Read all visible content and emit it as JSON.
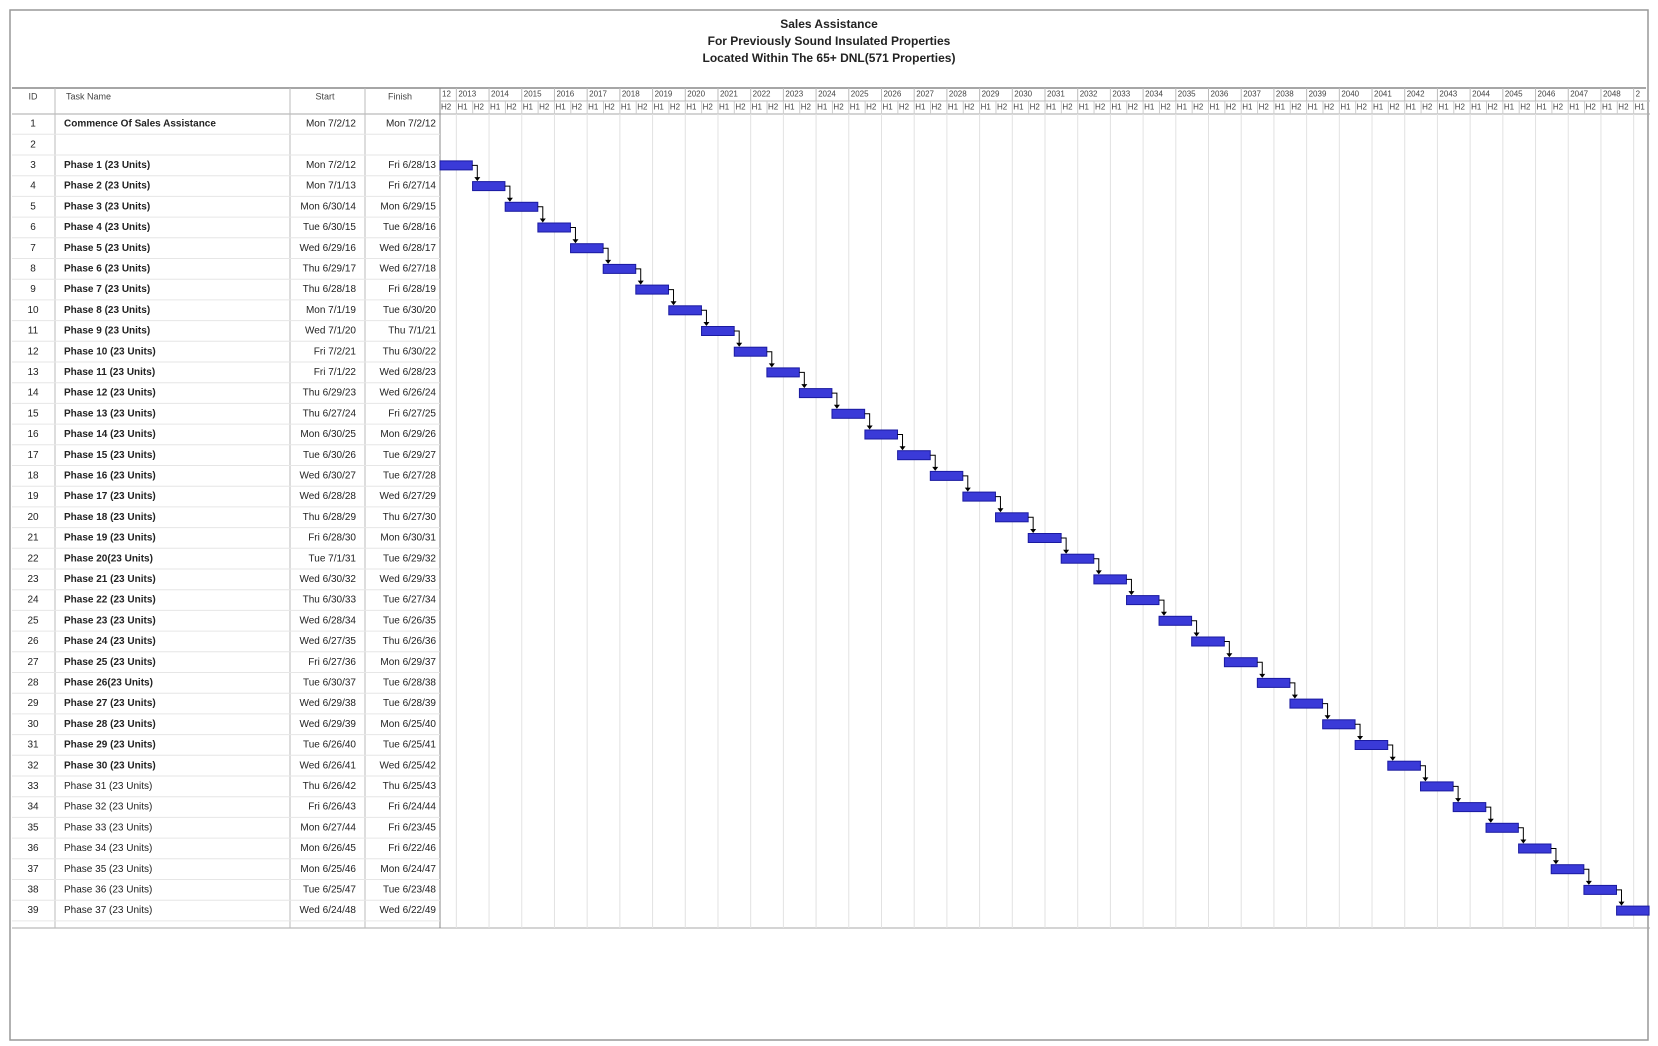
{
  "chart_data": {
    "type": "gantt",
    "title": [
      "Sales Assistance",
      "For Previously Sound Insulated Properties",
      "Located Within The 65+ DNL(571 Properties)"
    ],
    "columns": [
      "ID",
      "Task Name",
      "Start",
      "Finish"
    ],
    "bar_color": "#3a3ad8",
    "grid": true,
    "xlim": [
      2012.5,
      2049.5
    ],
    "xticks": [
      {
        "value": 2012,
        "label": "12"
      },
      2013,
      2014,
      2015,
      2016,
      2017,
      2018,
      2019,
      2020,
      2021,
      2022,
      2023,
      2024,
      2025,
      2026,
      2027,
      2028,
      2029,
      2030,
      2031,
      2032,
      2033,
      2034,
      2035,
      2036,
      2037,
      2038,
      2039,
      2040,
      2041,
      2042,
      2043,
      2044,
      2045,
      2046,
      2047,
      2048,
      {
        "value": 2049,
        "label": "2"
      }
    ],
    "halves": [
      {
        "value": 2012.5,
        "label": "H2"
      },
      {
        "value": 2013,
        "label": "H1"
      },
      {
        "value": 2013.5,
        "label": "H2"
      },
      {
        "value": 2014,
        "label": "H1"
      },
      {
        "value": 2014.5,
        "label": "H2"
      },
      {
        "value": 2015,
        "label": "H1"
      },
      {
        "value": 2015.5,
        "label": "H2"
      },
      {
        "value": 2016,
        "label": "H1"
      },
      {
        "value": 2016.5,
        "label": "H2"
      },
      {
        "value": 2017,
        "label": "H1"
      },
      {
        "value": 2017.5,
        "label": "H2"
      },
      {
        "value": 2018,
        "label": "H1"
      },
      {
        "value": 2018.5,
        "label": "H2"
      },
      {
        "value": 2019,
        "label": "H1"
      },
      {
        "value": 2019.5,
        "label": "H2"
      },
      {
        "value": 2020,
        "label": "H1"
      },
      {
        "value": 2020.5,
        "label": "H2"
      },
      {
        "value": 2021,
        "label": "H1"
      },
      {
        "value": 2021.5,
        "label": "H2"
      },
      {
        "value": 2022,
        "label": "H1"
      },
      {
        "value": 2022.5,
        "label": "H2"
      },
      {
        "value": 2023,
        "label": "H1"
      },
      {
        "value": 2023.5,
        "label": "H2"
      },
      {
        "value": 2024,
        "label": "H1"
      },
      {
        "value": 2024.5,
        "label": "H2"
      },
      {
        "value": 2025,
        "label": "H1"
      },
      {
        "value": 2025.5,
        "label": "H2"
      },
      {
        "value": 2026,
        "label": "H1"
      },
      {
        "value": 2026.5,
        "label": "H2"
      },
      {
        "value": 2027,
        "label": "H1"
      },
      {
        "value": 2027.5,
        "label": "H2"
      },
      {
        "value": 2028,
        "label": "H1"
      },
      {
        "value": 2028.5,
        "label": "H2"
      },
      {
        "value": 2029,
        "label": "H1"
      },
      {
        "value": 2029.5,
        "label": "H2"
      },
      {
        "value": 2030,
        "label": "H1"
      },
      {
        "value": 2030.5,
        "label": "H2"
      },
      {
        "value": 2031,
        "label": "H1"
      },
      {
        "value": 2031.5,
        "label": "H2"
      },
      {
        "value": 2032,
        "label": "H1"
      },
      {
        "value": 2032.5,
        "label": "H2"
      },
      {
        "value": 2033,
        "label": "H1"
      },
      {
        "value": 2033.5,
        "label": "H2"
      },
      {
        "value": 2034,
        "label": "H1"
      },
      {
        "value": 2034.5,
        "label": "H2"
      },
      {
        "value": 2035,
        "label": "H1"
      },
      {
        "value": 2035.5,
        "label": "H2"
      },
      {
        "value": 2036,
        "label": "H1"
      },
      {
        "value": 2036.5,
        "label": "H2"
      },
      {
        "value": 2037,
        "label": "H1"
      },
      {
        "value": 2037.5,
        "label": "H2"
      },
      {
        "value": 2038,
        "label": "H1"
      },
      {
        "value": 2038.5,
        "label": "H2"
      },
      {
        "value": 2039,
        "label": "H1"
      },
      {
        "value": 2039.5,
        "label": "H2"
      },
      {
        "value": 2040,
        "label": "H1"
      },
      {
        "value": 2040.5,
        "label": "H2"
      },
      {
        "value": 2041,
        "label": "H1"
      },
      {
        "value": 2041.5,
        "label": "H2"
      },
      {
        "value": 2042,
        "label": "H1"
      },
      {
        "value": 2042.5,
        "label": "H2"
      },
      {
        "value": 2043,
        "label": "H1"
      },
      {
        "value": 2043.5,
        "label": "H2"
      },
      {
        "value": 2044,
        "label": "H1"
      },
      {
        "value": 2044.5,
        "label": "H2"
      },
      {
        "value": 2045,
        "label": "H1"
      },
      {
        "value": 2045.5,
        "label": "H2"
      },
      {
        "value": 2046,
        "label": "H1"
      },
      {
        "value": 2046.5,
        "label": "H2"
      },
      {
        "value": 2047,
        "label": "H1"
      },
      {
        "value": 2047.5,
        "label": "H2"
      },
      {
        "value": 2048,
        "label": "H1"
      },
      {
        "value": 2048.5,
        "label": "H2"
      },
      {
        "value": 2049,
        "label": "H1"
      }
    ],
    "tasks": [
      {
        "id": 1,
        "name": "Commence Of Sales Assistance",
        "start": "Mon 7/2/12",
        "finish": "Mon 7/2/12",
        "bold": true
      },
      {
        "id": 2
      },
      {
        "id": 3,
        "name": "Phase 1 (23 Units)",
        "start": "Mon 7/2/12",
        "finish": "Fri 6/28/13",
        "bold": true
      },
      {
        "id": 4,
        "name": "Phase 2 (23 Units)",
        "start": "Mon 7/1/13",
        "finish": "Fri 6/27/14",
        "bold": true
      },
      {
        "id": 5,
        "name": "Phase 3 (23 Units)",
        "start": "Mon 6/30/14",
        "finish": "Mon 6/29/15",
        "bold": true
      },
      {
        "id": 6,
        "name": "Phase 4 (23 Units)",
        "start": "Tue 6/30/15",
        "finish": "Tue 6/28/16",
        "bold": true
      },
      {
        "id": 7,
        "name": "Phase 5 (23 Units)",
        "start": "Wed 6/29/16",
        "finish": "Wed 6/28/17",
        "bold": true
      },
      {
        "id": 8,
        "name": "Phase 6 (23 Units)",
        "start": "Thu 6/29/17",
        "finish": "Wed 6/27/18",
        "bold": true
      },
      {
        "id": 9,
        "name": "Phase 7 (23 Units)",
        "start": "Thu 6/28/18",
        "finish": "Fri 6/28/19",
        "bold": true
      },
      {
        "id": 10,
        "name": "Phase 8 (23 Units)",
        "start": "Mon 7/1/19",
        "finish": "Tue 6/30/20",
        "bold": true
      },
      {
        "id": 11,
        "name": "Phase 9 (23 Units)",
        "start": "Wed 7/1/20",
        "finish": "Thu 7/1/21",
        "bold": true
      },
      {
        "id": 12,
        "name": "Phase 10 (23 Units)",
        "start": "Fri 7/2/21",
        "finish": "Thu 6/30/22",
        "bold": true
      },
      {
        "id": 13,
        "name": "Phase 11 (23 Units)",
        "start": "Fri 7/1/22",
        "finish": "Wed 6/28/23",
        "bold": true
      },
      {
        "id": 14,
        "name": "Phase 12 (23 Units)",
        "start": "Thu 6/29/23",
        "finish": "Wed 6/26/24",
        "bold": true
      },
      {
        "id": 15,
        "name": "Phase 13 (23 Units)",
        "start": "Thu 6/27/24",
        "finish": "Fri 6/27/25",
        "bold": true
      },
      {
        "id": 16,
        "name": "Phase 14 (23 Units)",
        "start": "Mon 6/30/25",
        "finish": "Mon 6/29/26",
        "bold": true
      },
      {
        "id": 17,
        "name": "Phase 15 (23 Units)",
        "start": "Tue 6/30/26",
        "finish": "Tue 6/29/27",
        "bold": true
      },
      {
        "id": 18,
        "name": "Phase 16 (23 Units)",
        "start": "Wed 6/30/27",
        "finish": "Tue 6/27/28",
        "bold": true
      },
      {
        "id": 19,
        "name": "Phase 17 (23 Units)",
        "start": "Wed 6/28/28",
        "finish": "Wed 6/27/29",
        "bold": true
      },
      {
        "id": 20,
        "name": "Phase 18 (23 Units)",
        "start": "Thu 6/28/29",
        "finish": "Thu 6/27/30",
        "bold": true
      },
      {
        "id": 21,
        "name": "Phase 19 (23 Units)",
        "start": "Fri 6/28/30",
        "finish": "Mon 6/30/31",
        "bold": true
      },
      {
        "id": 22,
        "name": "Phase 20(23 Units)",
        "start": "Tue 7/1/31",
        "finish": "Tue 6/29/32",
        "bold": true
      },
      {
        "id": 23,
        "name": "Phase 21 (23 Units)",
        "start": "Wed 6/30/32",
        "finish": "Wed 6/29/33",
        "bold": true
      },
      {
        "id": 24,
        "name": "Phase 22 (23 Units)",
        "start": "Thu 6/30/33",
        "finish": "Tue 6/27/34",
        "bold": true
      },
      {
        "id": 25,
        "name": "Phase 23 (23 Units)",
        "start": "Wed 6/28/34",
        "finish": "Tue 6/26/35",
        "bold": true
      },
      {
        "id": 26,
        "name": "Phase 24 (23 Units)",
        "start": "Wed 6/27/35",
        "finish": "Thu 6/26/36",
        "bold": true
      },
      {
        "id": 27,
        "name": "Phase 25 (23 Units)",
        "start": "Fri 6/27/36",
        "finish": "Mon 6/29/37",
        "bold": true
      },
      {
        "id": 28,
        "name": "Phase 26(23 Units)",
        "start": "Tue 6/30/37",
        "finish": "Tue 6/28/38",
        "bold": true
      },
      {
        "id": 29,
        "name": "Phase 27 (23 Units)",
        "start": "Wed 6/29/38",
        "finish": "Tue 6/28/39",
        "bold": true
      },
      {
        "id": 30,
        "name": "Phase 28 (23 Units)",
        "start": "Wed 6/29/39",
        "finish": "Mon 6/25/40",
        "bold": true
      },
      {
        "id": 31,
        "name": "Phase 29 (23 Units)",
        "start": "Tue 6/26/40",
        "finish": "Tue 6/25/41",
        "bold": true
      },
      {
        "id": 32,
        "name": "Phase 30 (23 Units)",
        "start": "Wed 6/26/41",
        "finish": "Wed 6/25/42",
        "bold": true
      },
      {
        "id": 33,
        "name": "Phase 31 (23 Units)",
        "start": "Thu 6/26/42",
        "finish": "Thu 6/25/43",
        "bold": false
      },
      {
        "id": 34,
        "name": "Phase 32 (23 Units)",
        "start": "Fri 6/26/43",
        "finish": "Fri 6/24/44",
        "bold": false
      },
      {
        "id": 35,
        "name": "Phase 33 (23 Units)",
        "start": "Mon 6/27/44",
        "finish": "Fri 6/23/45",
        "bold": false
      },
      {
        "id": 36,
        "name": "Phase 34 (23 Units)",
        "start": "Mon 6/26/45",
        "finish": "Fri 6/22/46",
        "bold": false
      },
      {
        "id": 37,
        "name": "Phase 35 (23 Units)",
        "start": "Mon 6/25/46",
        "finish": "Mon 6/24/47",
        "bold": false
      },
      {
        "id": 38,
        "name": "Phase 36 (23 Units)",
        "start": "Tue 6/25/47",
        "finish": "Tue 6/23/48",
        "bold": false
      },
      {
        "id": 39,
        "name": "Phase 37 (23 Units)",
        "start": "Wed 6/24/48",
        "finish": "Wed 6/22/49",
        "bold": false
      }
    ]
  }
}
